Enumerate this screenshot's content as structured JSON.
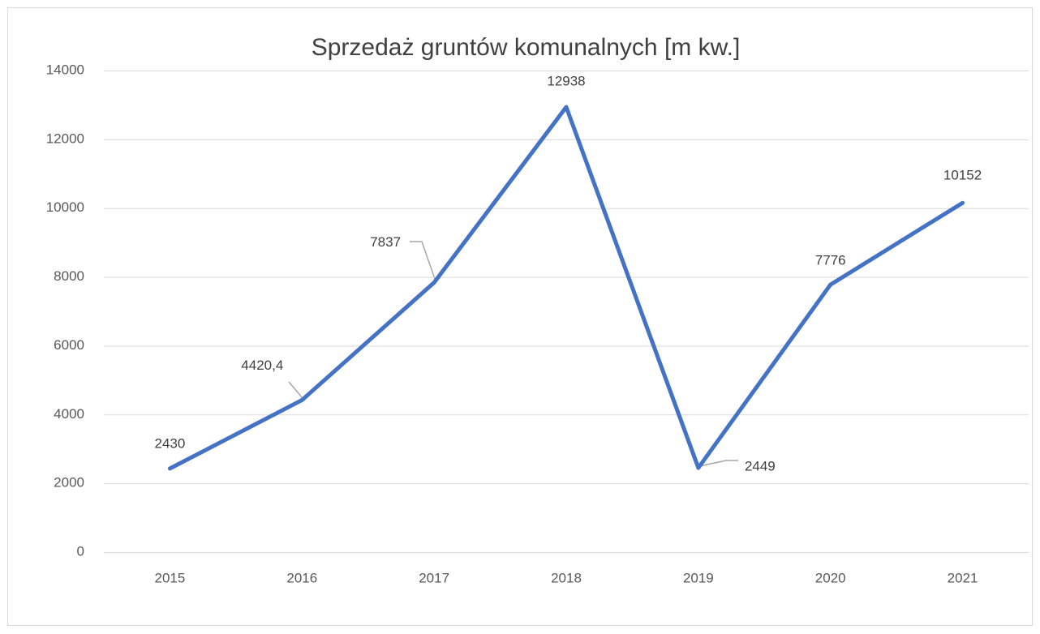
{
  "chart_data": {
    "type": "line",
    "title": "Sprzedaż gruntów komunalnych [m kw.]",
    "categories": [
      "2015",
      "2016",
      "2017",
      "2018",
      "2019",
      "2020",
      "2021"
    ],
    "values": [
      2430,
      4420.4,
      7837,
      12938,
      2449,
      7776,
      10152
    ],
    "value_labels": [
      "2430",
      "4420,4",
      "7837",
      "12938",
      "2449",
      "7776",
      "10152"
    ],
    "color": "#4472c4",
    "ylim": [
      0,
      14000
    ],
    "yticks": [
      0,
      2000,
      4000,
      6000,
      8000,
      10000,
      12000,
      14000
    ],
    "grid": true
  }
}
